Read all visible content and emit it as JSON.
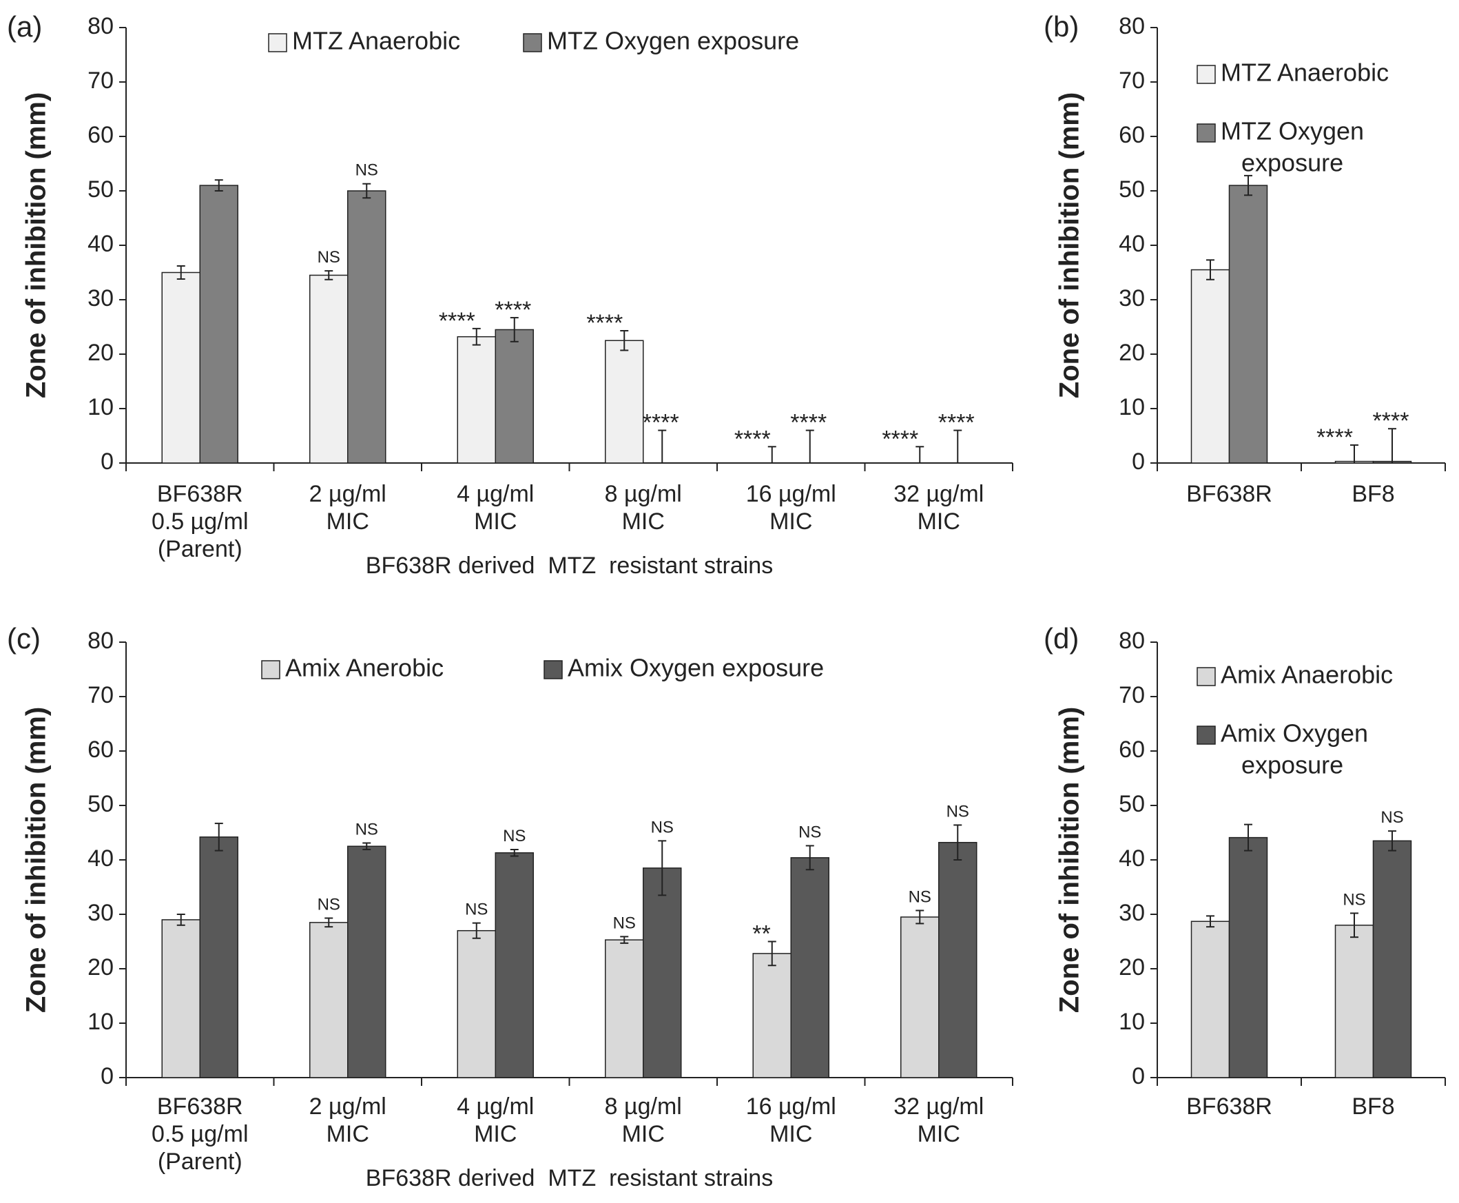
{
  "chart_data": [
    {
      "panel": "(a)",
      "type": "bar",
      "ylabel": "Zone of inhibition (mm)",
      "xlabel": "BF638R derived  MTZ  resistant strains",
      "ylim": [
        0,
        80
      ],
      "yticks": [
        0,
        10,
        20,
        30,
        40,
        50,
        60,
        70,
        80
      ],
      "legend": {
        "placement": "top-center",
        "layout": "row"
      },
      "categories": [
        [
          "BF638R",
          "0.5 µg/ml",
          "(Parent)"
        ],
        [
          "2 µg/ml",
          "MIC"
        ],
        [
          "4 µg/ml",
          "MIC"
        ],
        [
          "8 µg/ml",
          "MIC"
        ],
        [
          "16 µg/ml",
          "MIC"
        ],
        [
          "32 µg/ml",
          "MIC"
        ]
      ],
      "series": [
        {
          "name": "MTZ Anaerobic",
          "color": "#f0f0f0",
          "values": [
            35,
            34.5,
            23.2,
            22.5,
            0,
            0
          ],
          "errors": [
            1.2,
            0.8,
            1.5,
            1.8,
            3.0,
            3.0
          ],
          "annotations": [
            "",
            "NS",
            "****",
            "****",
            "****",
            "****"
          ]
        },
        {
          "name": "MTZ Oxygen exposure",
          "color": "#808080",
          "values": [
            51,
            50,
            24.5,
            0,
            0,
            0
          ],
          "errors": [
            1.0,
            1.3,
            2.2,
            6.0,
            6.0,
            6.0
          ],
          "annotations": [
            "",
            "NS",
            "****",
            "****",
            "****",
            "****"
          ]
        }
      ]
    },
    {
      "panel": "(b)",
      "type": "bar",
      "ylabel": "Zone of inhibition (mm)",
      "xlabel": "",
      "ylim": [
        0,
        80
      ],
      "yticks": [
        0,
        10,
        20,
        30,
        40,
        50,
        60,
        70,
        80
      ],
      "legend": {
        "placement": "top-left",
        "layout": "column"
      },
      "categories": [
        [
          "BF638R"
        ],
        [
          "BF8"
        ]
      ],
      "series": [
        {
          "name": "MTZ Anaerobic",
          "color": "#f0f0f0",
          "values": [
            35.5,
            0.3
          ],
          "errors": [
            1.8,
            3.0
          ],
          "annotations": [
            "",
            "****"
          ]
        },
        {
          "name": "MTZ Oxygen exposure",
          "color": "#808080",
          "values": [
            51,
            0.3
          ],
          "errors": [
            1.8,
            6.0
          ],
          "annotations": [
            "",
            "****"
          ]
        }
      ]
    },
    {
      "panel": "(c)",
      "type": "bar",
      "ylabel": "Zone of inhibition (mm)",
      "xlabel": "BF638R derived  MTZ  resistant strains",
      "ylim": [
        0,
        80
      ],
      "yticks": [
        0,
        10,
        20,
        30,
        40,
        50,
        60,
        70,
        80
      ],
      "legend": {
        "placement": "top-center",
        "layout": "row"
      },
      "categories": [
        [
          "BF638R",
          "0.5 µg/ml",
          "(Parent)"
        ],
        [
          "2 µg/ml",
          "MIC"
        ],
        [
          "4 µg/ml",
          "MIC"
        ],
        [
          "8 µg/ml",
          "MIC"
        ],
        [
          "16 µg/ml",
          "MIC"
        ],
        [
          "32 µg/ml",
          "MIC"
        ]
      ],
      "series": [
        {
          "name": "Amix Anerobic",
          "color": "#d9d9d9",
          "values": [
            29,
            28.5,
            27,
            25.3,
            22.8,
            29.5
          ],
          "errors": [
            1.0,
            0.8,
            1.4,
            0.6,
            2.2,
            1.2
          ],
          "annotations": [
            "",
            "NS",
            "NS",
            "NS",
            "**",
            "NS"
          ]
        },
        {
          "name": "Amix Oxygen exposure",
          "color": "#595959",
          "values": [
            44.2,
            42.5,
            41.3,
            38.5,
            40.4,
            43.2
          ],
          "errors": [
            2.5,
            0.6,
            0.6,
            5.0,
            2.2,
            3.2
          ],
          "annotations": [
            "",
            "NS",
            "NS",
            "NS",
            "NS",
            "NS"
          ]
        }
      ]
    },
    {
      "panel": "(d)",
      "type": "bar",
      "ylabel": "Zone of inhibition (mm)",
      "xlabel": "",
      "ylim": [
        0,
        80
      ],
      "yticks": [
        0,
        10,
        20,
        30,
        40,
        50,
        60,
        70,
        80
      ],
      "legend": {
        "placement": "top-left",
        "layout": "column"
      },
      "categories": [
        [
          "BF638R"
        ],
        [
          "BF8"
        ]
      ],
      "series": [
        {
          "name": "Amix Anaerobic",
          "color": "#d9d9d9",
          "values": [
            28.7,
            28
          ],
          "errors": [
            1.0,
            2.2
          ],
          "annotations": [
            "",
            "NS"
          ]
        },
        {
          "name": "Amix Oxygen exposure",
          "color": "#595959",
          "values": [
            44.1,
            43.5
          ],
          "errors": [
            2.4,
            1.8
          ],
          "annotations": [
            "",
            "NS"
          ]
        }
      ]
    }
  ]
}
